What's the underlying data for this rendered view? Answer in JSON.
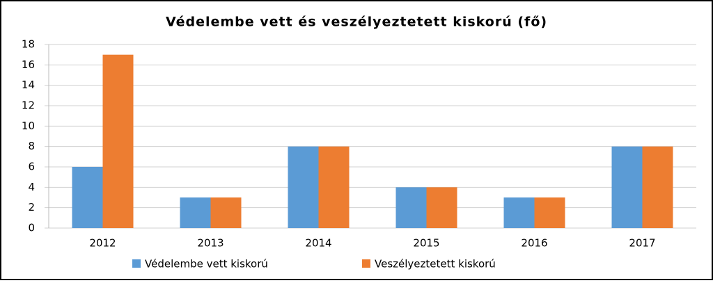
{
  "chart_data": {
    "type": "bar",
    "title": "Védelembe vett és veszélyeztetett kiskorú (fő)",
    "categories": [
      "2012",
      "2013",
      "2014",
      "2015",
      "2016",
      "2017"
    ],
    "series": [
      {
        "name": "Védelembe vett kiskorú",
        "color": "#5b9bd5",
        "values": [
          6,
          3,
          8,
          4,
          3,
          8
        ]
      },
      {
        "name": "Veszélyeztetett kiskorú",
        "color": "#ed7d31",
        "values": [
          17,
          3,
          8,
          4,
          3,
          8
        ]
      }
    ],
    "ylim": [
      0,
      18
    ],
    "yticks": [
      0,
      2,
      4,
      6,
      8,
      10,
      12,
      14,
      16,
      18
    ],
    "grid": true,
    "legend": "bottom"
  }
}
